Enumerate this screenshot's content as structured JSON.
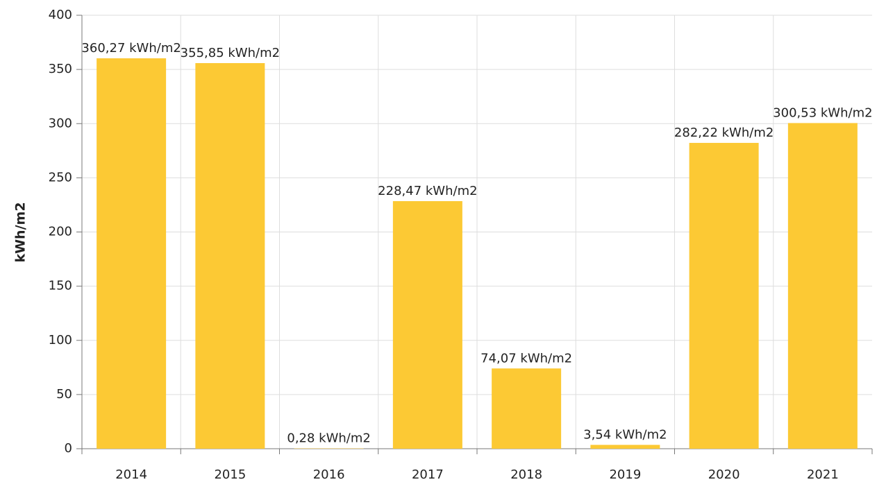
{
  "chart_data": {
    "type": "bar",
    "y_label": "kWh/m2",
    "categories": [
      "2014",
      "2015",
      "2016",
      "2017",
      "2018",
      "2019",
      "2020",
      "2021"
    ],
    "values": [
      360.27,
      355.85,
      0.28,
      228.47,
      74.07,
      3.54,
      282.22,
      300.53
    ],
    "value_labels": [
      "360,27 kWh/m2",
      "355,85 kWh/m2",
      "0,28 kWh/m2",
      "228,47 kWh/m2",
      "74,07 kWh/m2",
      "3,54 kWh/m2",
      "282,22 kWh/m2",
      "300,53 kWh/m2"
    ],
    "color": "#fcc934",
    "ylim": [
      0,
      400
    ],
    "yticks": [
      0,
      50,
      100,
      150,
      200,
      250,
      300,
      350,
      400
    ],
    "grid": true
  }
}
